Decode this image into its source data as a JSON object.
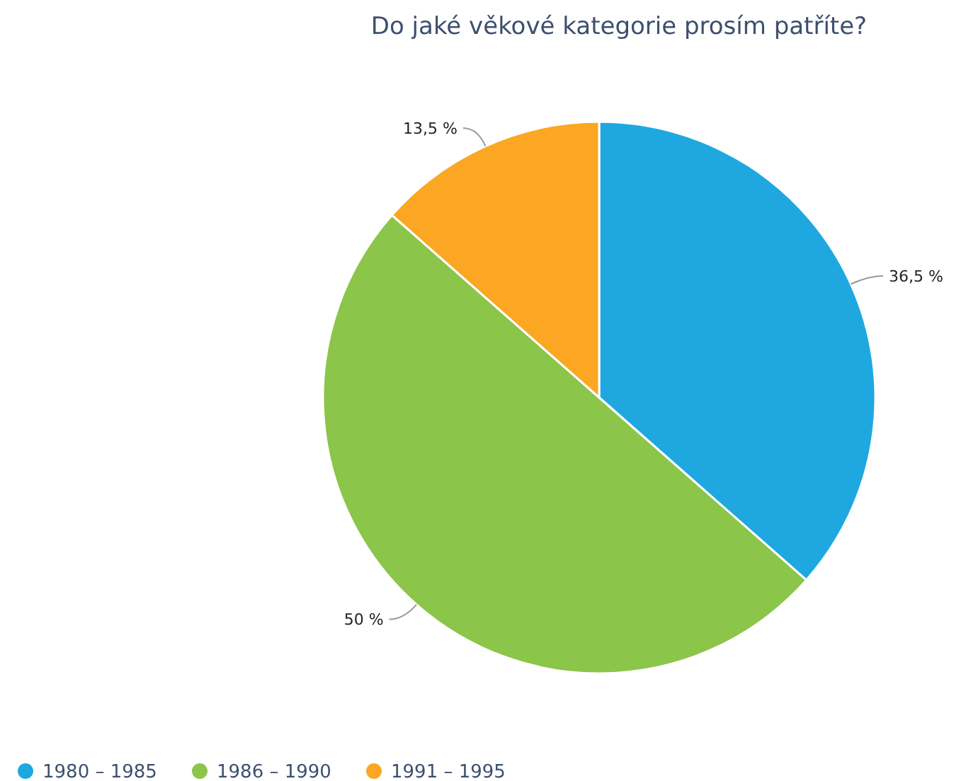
{
  "chart_data": {
    "type": "pie",
    "title": "Do jaké věkové kategorie prosím patříte?",
    "categories": [
      "1980 – 1985",
      "1986 – 1990",
      "1991 – 1995"
    ],
    "values": [
      36.5,
      50,
      13.5
    ],
    "colors": [
      "#1fa8e0",
      "#8bc54a",
      "#fba724"
    ],
    "value_labels": [
      "36,5 %",
      "50 %",
      "13,5 %"
    ],
    "legend": "bottom left"
  }
}
